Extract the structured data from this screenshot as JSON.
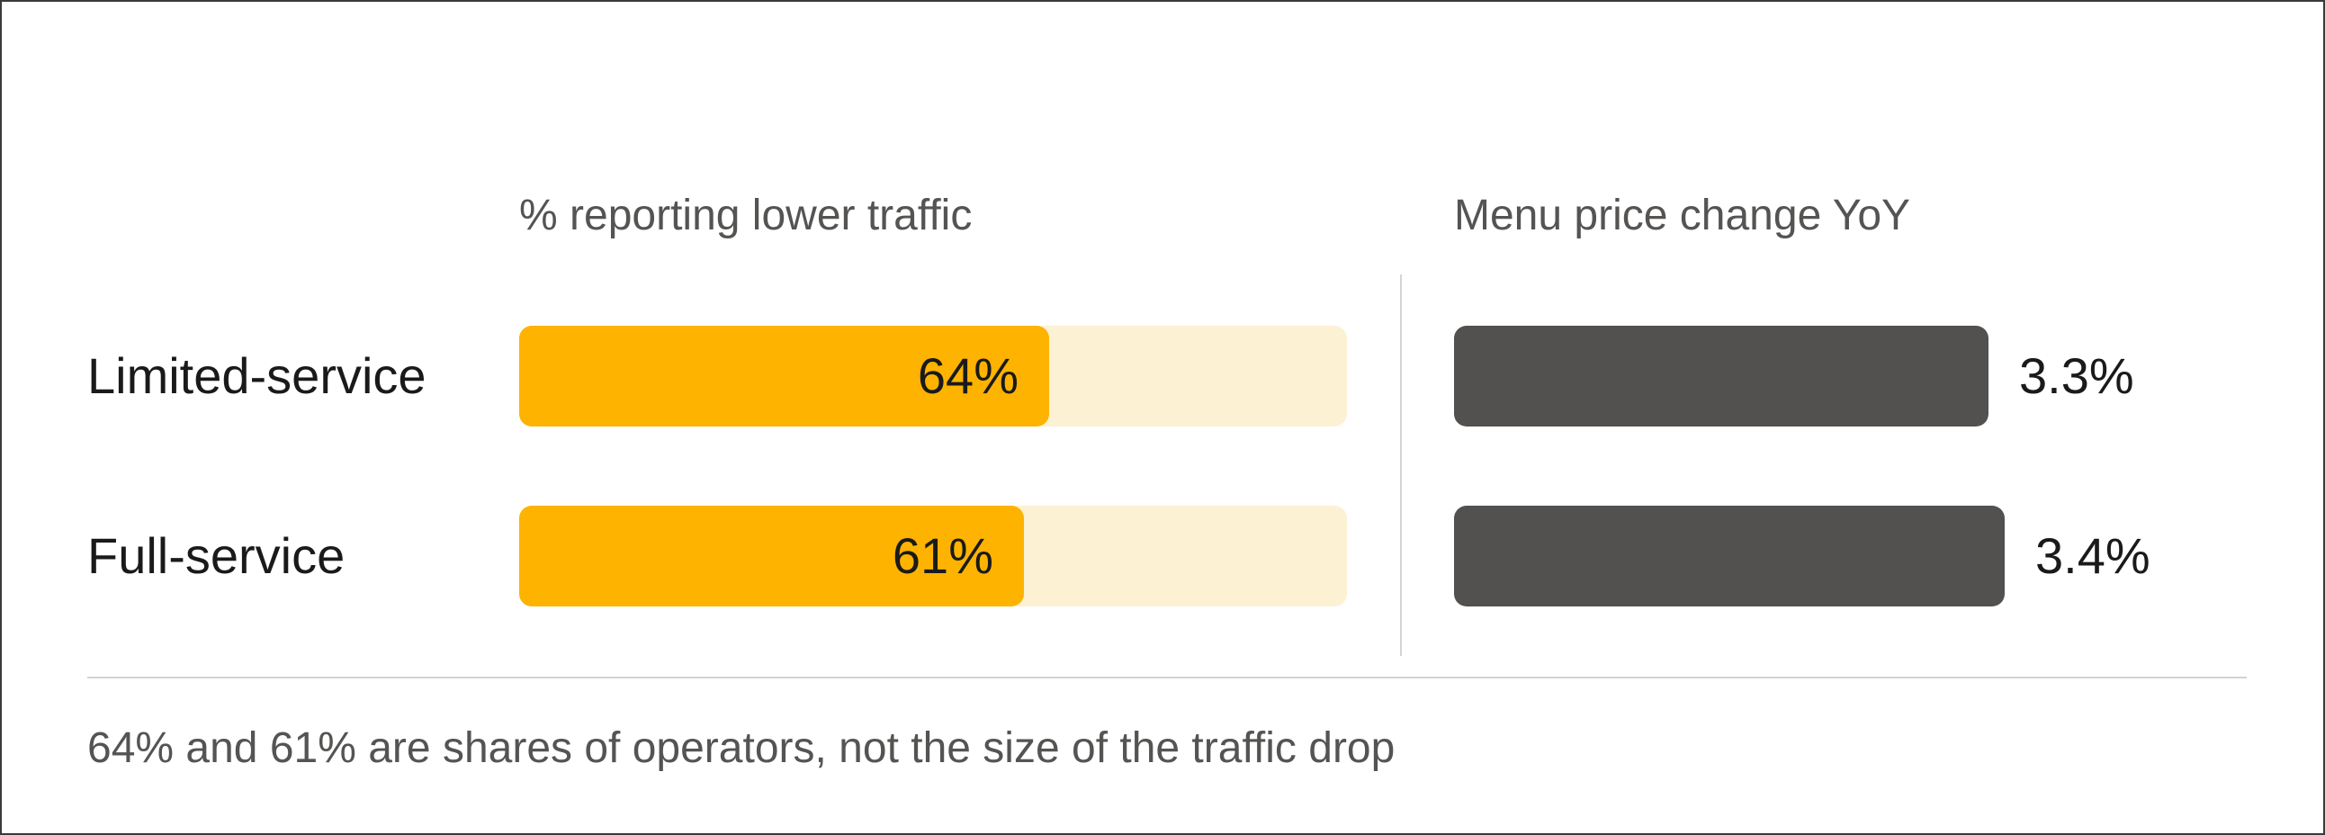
{
  "chart_data": [
    {
      "type": "bar",
      "orientation": "horizontal",
      "title": "% reporting lower traffic",
      "categories": [
        "Limited-service",
        "Full-service"
      ],
      "values": [
        64,
        61
      ],
      "value_labels": [
        "64%",
        "61%"
      ],
      "xlim": [
        0,
        100
      ],
      "colors": {
        "fill": "#fdb300",
        "track": "#fdf1d4"
      }
    },
    {
      "type": "bar",
      "orientation": "horizontal",
      "title": "Menu price change YoY",
      "categories": [
        "Limited-service",
        "Full-service"
      ],
      "values": [
        3.3,
        3.4
      ],
      "value_labels": [
        "3.3%",
        "3.4%"
      ],
      "colors": {
        "fill": "#52514f"
      }
    }
  ],
  "footnote": "64% and 61% are shares of operators, not the size of the traffic drop"
}
